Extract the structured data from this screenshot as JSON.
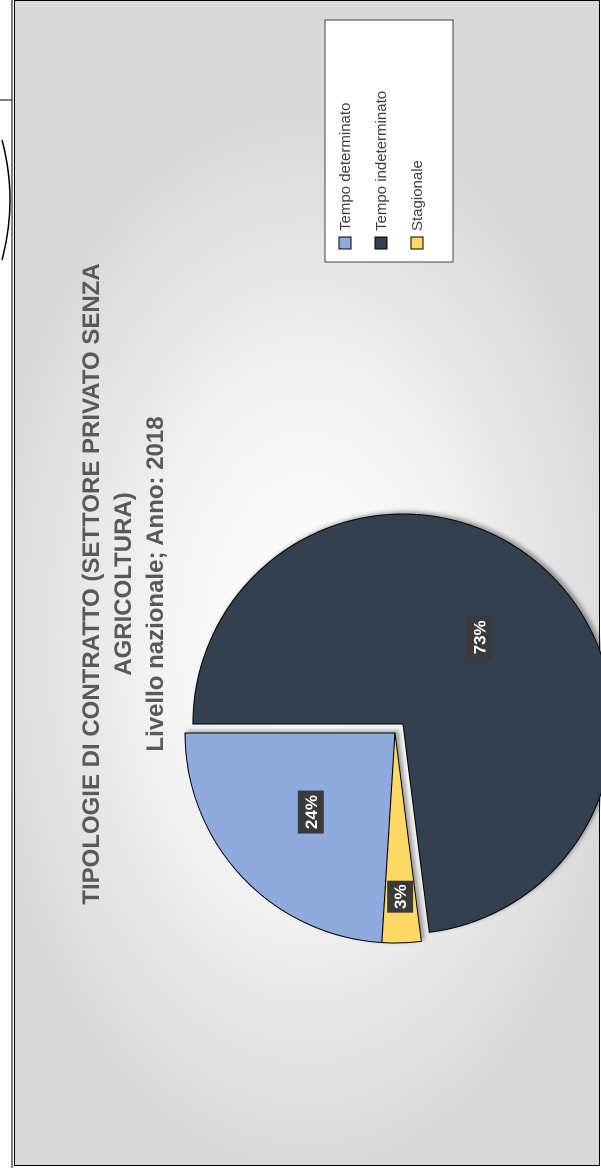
{
  "chart_data": {
    "type": "pie",
    "title": "TIPOLOGIE DI CONTRATTO (SETTORE PRIVATO SENZA AGRICOLTURA)",
    "title_lines": [
      "TIPOLOGIE DI CONTRATTO (SETTORE PRIVATO SENZA",
      "AGRICOLTURA)"
    ],
    "subtitle": "Livello nazionale; Anno: 2018",
    "categories": [
      "Tempo determinato",
      "Tempo indeterminato",
      "Stagionale"
    ],
    "values": [
      24,
      73,
      3
    ],
    "labels": [
      "24%",
      "73%",
      "3%"
    ],
    "colors": [
      "#8faadc",
      "#333f50",
      "#ffd966"
    ],
    "legend_position": "top-right",
    "exploded_slice": "Tempo indeterminato"
  }
}
